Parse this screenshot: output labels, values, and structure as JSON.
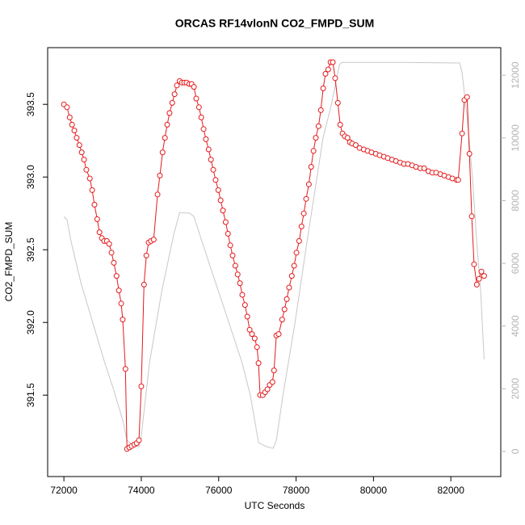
{
  "chart_data": {
    "type": "line",
    "title": "ORCAS RF14vlonN CO2_FMPD_SUM",
    "x_label": "UTC Seconds",
    "y_label": "CO2_FMPD_SUM",
    "xlim": [
      71580,
      83290
    ],
    "ylim": [
      390.94,
      393.89
    ],
    "y2lim": [
      -800,
      12880
    ],
    "xticks": [
      72000,
      74000,
      76000,
      78000,
      80000,
      82000
    ],
    "yticks": [
      391.5,
      {
        "value": 392,
        "label": "392.0"
      },
      392.5,
      {
        "value": 393,
        "label": "393.0"
      },
      393.5
    ],
    "y2ticks": [
      0,
      2000,
      4000,
      6000,
      8000,
      10000,
      12000
    ],
    "series": [
      {
        "color": "#e41a1c",
        "markers": true,
        "x": [
          72000,
          72080,
          72150,
          72210,
          72270,
          72330,
          72400,
          72460,
          72520,
          72580,
          72670,
          72730,
          72790,
          72860,
          72920,
          72980,
          73040,
          73110,
          73170,
          73230,
          73290,
          73360,
          73420,
          73480,
          73520,
          73590,
          73630,
          73690,
          73750,
          73820,
          73880,
          73940,
          74000,
          74070,
          74130,
          74190,
          74250,
          74320,
          74420,
          74480,
          74550,
          74610,
          74670,
          74730,
          74800,
          74860,
          74920,
          74990,
          75050,
          75110,
          75170,
          75240,
          75300,
          75360,
          75420,
          75490,
          75550,
          75610,
          75670,
          75740,
          75800,
          75860,
          75920,
          75990,
          76050,
          76110,
          76180,
          76240,
          76300,
          76360,
          76430,
          76490,
          76550,
          76610,
          76680,
          76740,
          76800,
          76860,
          76930,
          76990,
          77030,
          77070,
          77140,
          77200,
          77260,
          77320,
          77390,
          77430,
          77490,
          77550,
          77640,
          77700,
          77760,
          77820,
          77890,
          77950,
          78010,
          78080,
          78140,
          78200,
          78260,
          78330,
          78390,
          78450,
          78510,
          78580,
          78640,
          78700,
          78760,
          78830,
          78890,
          78950,
          79010,
          79080,
          79140,
          79200,
          79260,
          79330,
          79390,
          79450,
          79540,
          79640,
          79750,
          79850,
          79950,
          80060,
          80160,
          80270,
          80370,
          80480,
          80580,
          80690,
          80790,
          80890,
          81000,
          81100,
          81210,
          81310,
          81420,
          81520,
          81620,
          81730,
          81830,
          81940,
          82040,
          82150,
          82190,
          82290,
          82350,
          82420,
          82480,
          82540,
          82600,
          82670,
          82730,
          82790,
          82860
        ],
        "values": [
          393.5,
          393.48,
          393.41,
          393.36,
          393.32,
          393.27,
          393.22,
          393.17,
          393.12,
          393.05,
          392.99,
          392.91,
          392.81,
          392.71,
          392.62,
          392.58,
          392.56,
          392.56,
          392.54,
          392.48,
          392.41,
          392.32,
          392.22,
          392.13,
          392.02,
          391.68,
          391.13,
          391.14,
          391.15,
          391.16,
          391.17,
          391.19,
          391.56,
          392.26,
          392.46,
          392.55,
          392.56,
          392.57,
          392.88,
          393.01,
          393.17,
          393.27,
          393.36,
          393.44,
          393.51,
          393.57,
          393.63,
          393.66,
          393.65,
          393.65,
          393.65,
          393.64,
          393.64,
          393.62,
          393.54,
          393.48,
          393.41,
          393.33,
          393.26,
          393.19,
          393.12,
          393.05,
          392.98,
          392.91,
          392.84,
          392.77,
          392.69,
          392.61,
          392.53,
          392.46,
          392.39,
          392.33,
          392.27,
          392.19,
          392.12,
          392.04,
          391.95,
          391.92,
          391.89,
          391.83,
          391.72,
          391.5,
          391.5,
          391.52,
          391.54,
          391.57,
          391.59,
          391.67,
          391.91,
          391.92,
          392.02,
          392.09,
          392.16,
          392.24,
          392.32,
          392.39,
          392.48,
          392.56,
          392.66,
          392.75,
          392.85,
          392.95,
          393.07,
          393.18,
          393.27,
          393.35,
          393.46,
          393.61,
          393.71,
          393.74,
          393.79,
          393.79,
          393.68,
          393.51,
          393.36,
          393.3,
          393.28,
          393.27,
          393.24,
          393.23,
          393.22,
          393.2,
          393.19,
          393.18,
          393.17,
          393.16,
          393.15,
          393.14,
          393.13,
          393.12,
          393.11,
          393.1,
          393.09,
          393.09,
          393.08,
          393.07,
          393.06,
          393.06,
          393.04,
          393.03,
          393.03,
          393.02,
          393.01,
          393.0,
          392.99,
          392.98,
          392.98,
          393.3,
          393.53,
          393.55,
          393.16,
          392.73,
          392.4,
          392.26,
          392.3,
          392.35,
          392.32
        ]
      },
      {
        "color": "#c8c8c8",
        "axis": "y2",
        "markers": false,
        "x": [
          72000,
          72080,
          72190,
          72440,
          72750,
          73060,
          73270,
          73520,
          73630,
          73800,
          73940,
          74000,
          74210,
          74530,
          74840,
          74990,
          75260,
          75360,
          75780,
          76200,
          76610,
          76820,
          77030,
          77240,
          77410,
          77490,
          77660,
          77970,
          78280,
          78700,
          78910,
          79120,
          79180,
          80790,
          82230,
          82290,
          82420,
          82560,
          82670,
          82770,
          82860
        ],
        "values": [
          7490,
          7390,
          6670,
          5380,
          4090,
          2810,
          2030,
          1000,
          360,
          180,
          150,
          490,
          2810,
          5120,
          6930,
          7620,
          7600,
          7490,
          5900,
          4350,
          2810,
          1780,
          280,
          150,
          100,
          360,
          1780,
          4090,
          6670,
          10020,
          11050,
          12330,
          12410,
          12410,
          12390,
          12080,
          10660,
          8730,
          6670,
          5120,
          2940
        ]
      }
    ]
  }
}
